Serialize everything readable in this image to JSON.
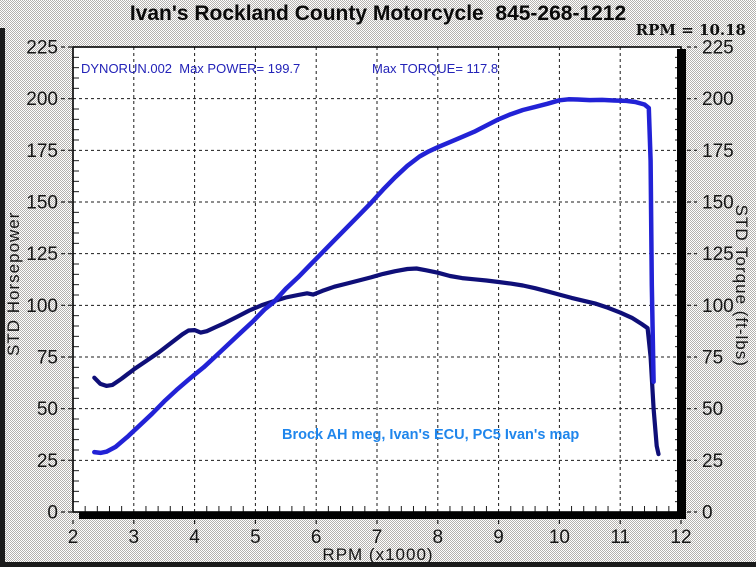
{
  "window": {
    "title": "Ivan's Rockland County Motorcycle  845-268-1212",
    "rpm_readout": "RPM = 10.18"
  },
  "chart_data": {
    "type": "line",
    "title": "Ivan's Rockland County Motorcycle  845-268-1212",
    "rpm_readout": "RPM = 10.18",
    "legend": {
      "run_power": "DYNORUN.002  Max POWER= 199.7",
      "torque": "Max TORQUE= 117.8"
    },
    "note": "Brock AH meg, Ivan's ECU, PC5 Ivan's map",
    "max_power_hp": 199.7,
    "max_torque_ftlb": 117.8,
    "grid": true,
    "x_axis": {
      "label": "RPM (x1000)",
      "min": 2,
      "max": 12,
      "minor_step": 0.2,
      "ticks": [
        2,
        3,
        4,
        5,
        6,
        7,
        8,
        9,
        10,
        11,
        12
      ]
    },
    "y_axis_left": {
      "label": "STD Horsepower",
      "min": 0,
      "max": 225,
      "minor_step": 5,
      "ticks": [
        0,
        25,
        50,
        75,
        100,
        125,
        150,
        175,
        200,
        225
      ]
    },
    "y_axis_right": {
      "label": "STD Torque (ft-lbs)",
      "min": 0,
      "max": 225,
      "minor_step": 5,
      "ticks": [
        0,
        25,
        50,
        75,
        100,
        125,
        150,
        175,
        200,
        225
      ]
    },
    "series": [
      {
        "name": "power",
        "label": "STD Horsepower (DYNORUN.002)",
        "color": "#2222d6",
        "width": 4.5,
        "points": [
          [
            2.35,
            29.0
          ],
          [
            2.45,
            28.6
          ],
          [
            2.55,
            29.2
          ],
          [
            2.7,
            31.5
          ],
          [
            2.9,
            36.5
          ],
          [
            3.1,
            42.0
          ],
          [
            3.3,
            47.5
          ],
          [
            3.5,
            53.5
          ],
          [
            3.7,
            59.0
          ],
          [
            3.9,
            64.0
          ],
          [
            4.0,
            66.5
          ],
          [
            4.15,
            70.0
          ],
          [
            4.35,
            75.5
          ],
          [
            4.55,
            81.0
          ],
          [
            4.75,
            86.5
          ],
          [
            4.95,
            92.0
          ],
          [
            5.15,
            98.0
          ],
          [
            5.3,
            101.5
          ],
          [
            5.5,
            108.0
          ],
          [
            5.7,
            113.5
          ],
          [
            5.9,
            119.5
          ],
          [
            6.1,
            125.5
          ],
          [
            6.3,
            131.5
          ],
          [
            6.5,
            137.5
          ],
          [
            6.7,
            143.5
          ],
          [
            6.9,
            149.5
          ],
          [
            7.1,
            156.0
          ],
          [
            7.3,
            162.0
          ],
          [
            7.5,
            167.5
          ],
          [
            7.7,
            172.0
          ],
          [
            7.85,
            174.5
          ],
          [
            8.0,
            176.5
          ],
          [
            8.2,
            179.0
          ],
          [
            8.4,
            181.5
          ],
          [
            8.6,
            184.0
          ],
          [
            8.8,
            187.0
          ],
          [
            9.0,
            190.0
          ],
          [
            9.2,
            192.5
          ],
          [
            9.4,
            194.5
          ],
          [
            9.6,
            196.0
          ],
          [
            9.8,
            197.5
          ],
          [
            10.0,
            199.2
          ],
          [
            10.15,
            199.7
          ],
          [
            10.3,
            199.6
          ],
          [
            10.5,
            199.3
          ],
          [
            10.7,
            199.4
          ],
          [
            10.9,
            199.1
          ],
          [
            11.1,
            198.9
          ],
          [
            11.25,
            198.4
          ],
          [
            11.4,
            197.2
          ],
          [
            11.47,
            195.5
          ],
          [
            11.5,
            170.0
          ],
          [
            11.52,
            110.0
          ],
          [
            11.55,
            63.0
          ]
        ]
      },
      {
        "name": "torque",
        "label": "STD Torque (ft-lbs)",
        "color": "#0f0f78",
        "width": 4.2,
        "points": [
          [
            2.35,
            65.0
          ],
          [
            2.45,
            62.0
          ],
          [
            2.55,
            61.0
          ],
          [
            2.65,
            61.5
          ],
          [
            2.8,
            64.5
          ],
          [
            3.0,
            69.0
          ],
          [
            3.2,
            73.0
          ],
          [
            3.4,
            77.0
          ],
          [
            3.6,
            81.5
          ],
          [
            3.8,
            86.0
          ],
          [
            3.9,
            87.8
          ],
          [
            4.0,
            88.0
          ],
          [
            4.1,
            86.8
          ],
          [
            4.2,
            87.5
          ],
          [
            4.35,
            89.5
          ],
          [
            4.5,
            91.5
          ],
          [
            4.7,
            94.5
          ],
          [
            4.9,
            97.5
          ],
          [
            5.1,
            100.0
          ],
          [
            5.3,
            102.0
          ],
          [
            5.5,
            103.8
          ],
          [
            5.7,
            105.0
          ],
          [
            5.85,
            105.8
          ],
          [
            5.95,
            105.2
          ],
          [
            6.1,
            107.0
          ],
          [
            6.3,
            109.0
          ],
          [
            6.5,
            110.5
          ],
          [
            6.7,
            112.0
          ],
          [
            6.9,
            113.5
          ],
          [
            7.1,
            115.2
          ],
          [
            7.3,
            116.5
          ],
          [
            7.5,
            117.6
          ],
          [
            7.65,
            117.8
          ],
          [
            7.8,
            117.0
          ],
          [
            8.0,
            115.8
          ],
          [
            8.2,
            114.2
          ],
          [
            8.4,
            113.2
          ],
          [
            8.6,
            112.6
          ],
          [
            8.8,
            112.0
          ],
          [
            9.0,
            111.3
          ],
          [
            9.2,
            110.5
          ],
          [
            9.4,
            109.6
          ],
          [
            9.6,
            108.3
          ],
          [
            9.8,
            106.8
          ],
          [
            10.0,
            105.2
          ],
          [
            10.2,
            103.6
          ],
          [
            10.4,
            102.2
          ],
          [
            10.6,
            100.8
          ],
          [
            10.8,
            98.8
          ],
          [
            11.0,
            96.5
          ],
          [
            11.2,
            93.8
          ],
          [
            11.35,
            91.0
          ],
          [
            11.45,
            89.0
          ],
          [
            11.5,
            75.0
          ],
          [
            11.55,
            50.0
          ],
          [
            11.6,
            32.0
          ],
          [
            11.63,
            28.0
          ]
        ]
      }
    ]
  },
  "colors": {
    "power_curve": "#2222d6",
    "torque_curve": "#0f0f78",
    "legend_text": "#2323b8",
    "note_text": "#1f86ec",
    "grid": "#1b1b1b",
    "plot_background": "#ffffff"
  }
}
